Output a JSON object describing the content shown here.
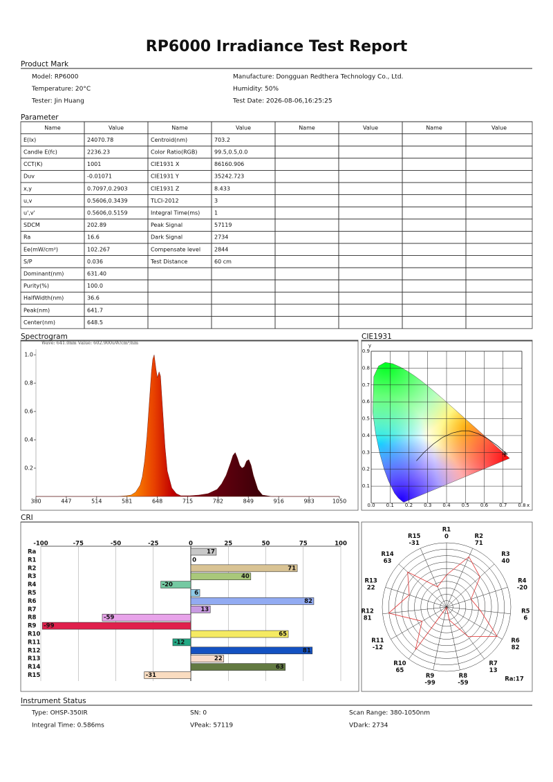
{
  "header": {
    "title": "RP6000 Irradiance Test Report"
  },
  "product_mark": {
    "title": "Product Mark",
    "left": [
      "Model: RP6000",
      "Temperature: 20°C",
      "Tester: Jin Huang"
    ],
    "right": [
      "Manufacture: Dongguan Redthera Technology Co., Ltd.",
      "Humidity: 50%",
      "Test Date: 2026-08-06,16:25:25"
    ]
  },
  "parameter": {
    "title": "Parameter",
    "header": [
      "Name",
      "Value",
      "Name",
      "Value",
      "Name",
      "Value",
      "Name",
      "Value"
    ],
    "rows": [
      [
        "E(lx)",
        "24070.78",
        "Centroid(nm)",
        "703.2"
      ],
      [
        "Candle E(fc)",
        "2236.23",
        "Color Ratio(RGB)",
        "99.5,0.5,0.0"
      ],
      [
        "CCT(K)",
        "1001",
        "CIE1931 X",
        "86160.906"
      ],
      [
        "Duv",
        "-0.01071",
        "CIE1931 Y",
        "35242.723"
      ],
      [
        "x,y",
        "0.7097,0.2903",
        "CIE1931 Z",
        "8.433"
      ],
      [
        "u,v",
        "0.5606,0.3439",
        "TLCI-2012",
        "3"
      ],
      [
        "u',v'",
        "0.5606,0.5159",
        "Integral Time(ms)",
        "1"
      ],
      [
        "SDCM",
        "202.89",
        "Peak Signal",
        "57119"
      ],
      [
        "Ra",
        "16.6",
        "Dark Signal",
        "2734"
      ],
      [
        "Ee(mW/cm²)",
        "102.267",
        "Compensate level",
        "2844"
      ],
      [
        "S/P",
        "0.036",
        "Test Distance",
        "60 cm"
      ],
      [
        "Dominant(nm)",
        "631.40"
      ],
      [
        "Purity(%)",
        "100.0"
      ],
      [
        "HalfWidth(nm)",
        "36.6"
      ],
      [
        "Peak(nm)",
        "641.7"
      ],
      [
        "Center(nm)",
        "648.5"
      ]
    ]
  },
  "chart_data": [
    {
      "type": "area",
      "title": "Spectrogram",
      "annotation": "Wave: 641.0nm Value: 602.900uW/cm²/nm",
      "x": [
        380,
        560,
        580,
        590,
        600,
        610,
        615,
        620,
        625,
        630,
        635,
        638,
        641,
        645,
        648,
        652,
        655,
        660,
        665,
        670,
        680,
        690,
        700,
        720,
        740,
        760,
        780,
        790,
        800,
        810,
        815,
        820,
        825,
        830,
        835,
        840,
        845,
        850,
        855,
        860,
        870,
        880,
        900,
        1050
      ],
      "values": [
        0,
        0,
        0.005,
        0.01,
        0.03,
        0.08,
        0.14,
        0.25,
        0.42,
        0.65,
        0.88,
        0.97,
        1.0,
        0.9,
        0.84,
        0.88,
        0.85,
        0.6,
        0.35,
        0.18,
        0.06,
        0.02,
        0.005,
        0.005,
        0.01,
        0.02,
        0.05,
        0.09,
        0.15,
        0.24,
        0.29,
        0.31,
        0.27,
        0.22,
        0.2,
        0.21,
        0.25,
        0.26,
        0.22,
        0.15,
        0.05,
        0.01,
        0,
        0
      ],
      "xlim": [
        380,
        1050
      ],
      "xticks": [
        380,
        447,
        514,
        581,
        648,
        715,
        782,
        849,
        916,
        983,
        1050
      ],
      "ylim": [
        0,
        1.04
      ],
      "yticks": [
        0.2,
        0.4,
        0.6,
        0.8,
        {
          "value": 1,
          "label": "1.0"
        }
      ]
    },
    {
      "type": "chromaticity",
      "title": "CIE1931",
      "xlabel": "x",
      "ylabel": "y",
      "point_x": 0.7097,
      "point_y": 0.2903,
      "xlim": [
        0,
        0.8
      ],
      "xticks": [
        {
          "value": 0,
          "label": "0.0"
        },
        0.1,
        0.2,
        0.3,
        0.4,
        0.5,
        0.6,
        0.7,
        0.8
      ],
      "ylim": [
        0,
        0.9
      ],
      "yticks": [
        0.1,
        0.2,
        0.3,
        0.4,
        0.5,
        0.6,
        0.7,
        0.8,
        0.9
      ],
      "grid": true
    },
    {
      "type": "hbar",
      "title": "CRI",
      "categories": [
        "Ra",
        "R1",
        "R2",
        "R3",
        "R4",
        "R5",
        "R6",
        "R7",
        "R8",
        "R9",
        "R10",
        "R11",
        "R12",
        "R13",
        "R14",
        "R15"
      ],
      "values": [
        17,
        0,
        71,
        40,
        -20,
        6,
        82,
        13,
        -59,
        -99,
        65,
        -12,
        81,
        22,
        63,
        -31
      ],
      "colors": [
        "#c8c8c8",
        "#ffffff",
        "#d9c394",
        "#a9c87a",
        "#74c9a2",
        "#8fcbe8",
        "#92abf2",
        "#c89ae2",
        "#e8a3ea",
        "#e0204c",
        "#f5ea62",
        "#23a884",
        "#1452c2",
        "#f9dccb",
        "#637a42",
        "#f9dcc0"
      ],
      "xlim": [
        -100,
        100
      ],
      "xticks": [
        -100,
        -75,
        -50,
        -25,
        0,
        25,
        50,
        75,
        100
      ],
      "grid": true
    },
    {
      "type": "radar",
      "annotation": "Ra:17",
      "categories": [
        "R1",
        "R2",
        "R3",
        "R4",
        "R5",
        "R6",
        "R7",
        "R8",
        "R9",
        "R10",
        "R11",
        "R12",
        "R13",
        "R14",
        "R15"
      ],
      "values": [
        0,
        71,
        40,
        -20,
        6,
        82,
        13,
        -59,
        -99,
        65,
        -12,
        81,
        22,
        63,
        -31
      ],
      "rlim": [
        -100,
        100
      ],
      "color": "#e03030"
    }
  ],
  "instrument_status": {
    "title": "Instrument Status",
    "fields": [
      "Type: OHSP-350IR",
      "SN: 0",
      "Scan Range: 380-1050nm",
      "Integral Time: 0.586ms",
      "VPeak: 57119",
      "VDark: 2734"
    ]
  }
}
